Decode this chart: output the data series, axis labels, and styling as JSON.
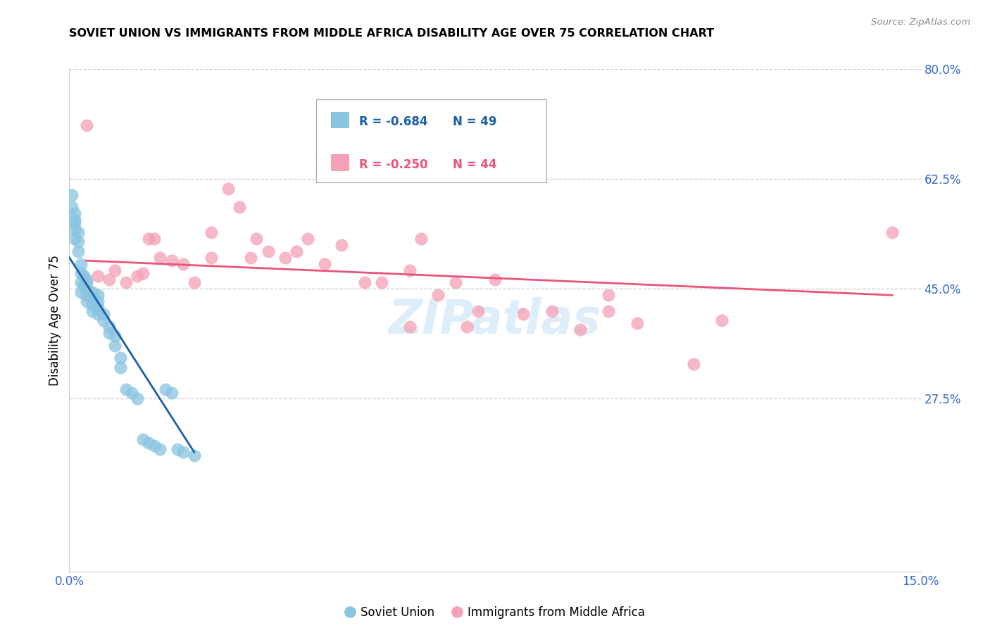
{
  "title": "SOVIET UNION VS IMMIGRANTS FROM MIDDLE AFRICA DISABILITY AGE OVER 75 CORRELATION CHART",
  "source": "Source: ZipAtlas.com",
  "ylabel": "Disability Age Over 75",
  "xlim": [
    0.0,
    0.15
  ],
  "ylim": [
    0.0,
    0.8
  ],
  "yticks": [
    0.275,
    0.45,
    0.625,
    0.8
  ],
  "ytick_labels": [
    "27.5%",
    "45.0%",
    "62.5%",
    "80.0%"
  ],
  "xticks": [
    0.0,
    0.05,
    0.1,
    0.15
  ],
  "xtick_labels": [
    "0.0%",
    "",
    "",
    "15.0%"
  ],
  "series1_color": "#89c4e1",
  "series2_color": "#f4a0b5",
  "trendline1_color": "#1a5fa8",
  "trendline2_color": "#e8547a",
  "watermark": "ZIPatlas",
  "soviet_union_x": [
    0.0005,
    0.0005,
    0.001,
    0.001,
    0.001,
    0.001,
    0.001,
    0.0015,
    0.0015,
    0.0015,
    0.002,
    0.002,
    0.002,
    0.002,
    0.0025,
    0.0025,
    0.003,
    0.003,
    0.003,
    0.003,
    0.003,
    0.004,
    0.004,
    0.004,
    0.004,
    0.005,
    0.005,
    0.005,
    0.005,
    0.006,
    0.006,
    0.007,
    0.007,
    0.008,
    0.008,
    0.009,
    0.009,
    0.01,
    0.011,
    0.012,
    0.013,
    0.014,
    0.015,
    0.016,
    0.017,
    0.018,
    0.019,
    0.02,
    0.022
  ],
  "soviet_union_y": [
    0.6,
    0.58,
    0.56,
    0.545,
    0.53,
    0.555,
    0.57,
    0.51,
    0.525,
    0.54,
    0.49,
    0.475,
    0.46,
    0.445,
    0.47,
    0.455,
    0.44,
    0.43,
    0.45,
    0.46,
    0.465,
    0.435,
    0.425,
    0.415,
    0.445,
    0.43,
    0.42,
    0.41,
    0.44,
    0.4,
    0.41,
    0.39,
    0.38,
    0.375,
    0.36,
    0.34,
    0.325,
    0.29,
    0.285,
    0.275,
    0.21,
    0.205,
    0.2,
    0.195,
    0.29,
    0.285,
    0.195,
    0.19,
    0.185
  ],
  "middle_africa_x": [
    0.003,
    0.005,
    0.007,
    0.008,
    0.01,
    0.012,
    0.013,
    0.014,
    0.015,
    0.016,
    0.018,
    0.02,
    0.022,
    0.025,
    0.025,
    0.028,
    0.03,
    0.032,
    0.033,
    0.035,
    0.038,
    0.04,
    0.042,
    0.045,
    0.048,
    0.052,
    0.055,
    0.06,
    0.062,
    0.065,
    0.068,
    0.072,
    0.075,
    0.08,
    0.085,
    0.09,
    0.095,
    0.1,
    0.11,
    0.115,
    0.095,
    0.07,
    0.06,
    0.145
  ],
  "middle_africa_y": [
    0.71,
    0.47,
    0.465,
    0.48,
    0.46,
    0.47,
    0.475,
    0.53,
    0.53,
    0.5,
    0.495,
    0.49,
    0.46,
    0.54,
    0.5,
    0.61,
    0.58,
    0.5,
    0.53,
    0.51,
    0.5,
    0.51,
    0.53,
    0.49,
    0.52,
    0.46,
    0.46,
    0.48,
    0.53,
    0.44,
    0.46,
    0.415,
    0.465,
    0.41,
    0.415,
    0.385,
    0.415,
    0.395,
    0.33,
    0.4,
    0.44,
    0.39,
    0.39,
    0.54
  ],
  "trendline1_x": [
    0.0,
    0.022
  ],
  "trendline1_y": [
    0.5,
    0.19
  ],
  "trendline2_x": [
    0.003,
    0.145
  ],
  "trendline2_y": [
    0.495,
    0.44
  ]
}
